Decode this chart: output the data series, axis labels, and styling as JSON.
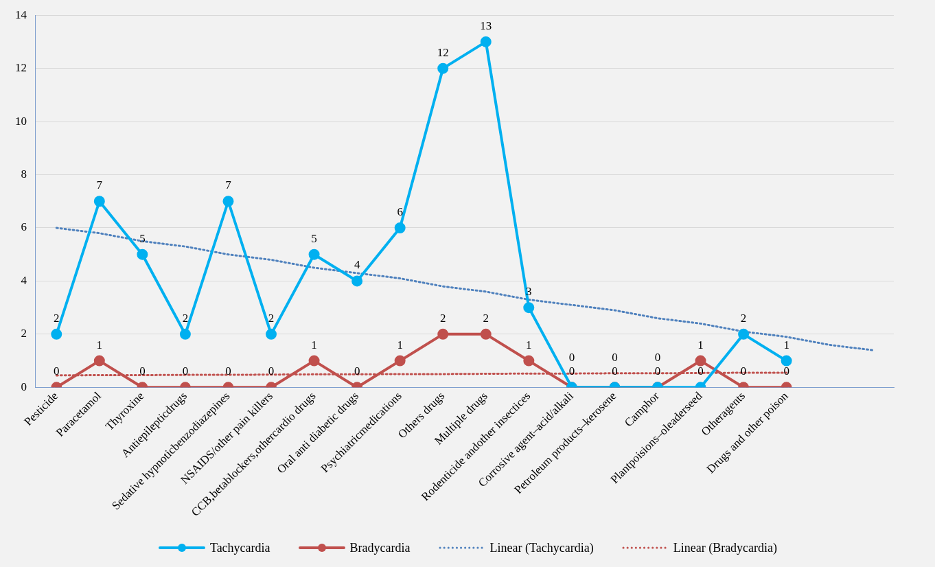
{
  "chart_data": {
    "type": "line",
    "categories": [
      "Pesticide",
      "Paracetamol",
      "Thyroxine",
      "Antiepilepticdrugs",
      "Sedative hypnoticbenzodiazepines",
      "NSAIDS/other pain killers",
      "CCB,betablockers,othercardio drugs",
      "Oral anti diabetic drugs",
      "Psychiatricmedications",
      "Others drugs",
      "Multiple drugs",
      "Rodenticide andother insectices",
      "Corrosive agent–acid/alkali",
      "Petroleum products–kerosene",
      "Camphor",
      "Plantpoisions–oleaderseed",
      "Otheragents",
      "Drugs and other poison",
      null,
      null
    ],
    "series": [
      {
        "name": "Tachycardia",
        "color": "#00b0f0",
        "marker": "circle",
        "line_style": "solid",
        "data_labels": true,
        "values": [
          2,
          7,
          5,
          2,
          7,
          2,
          5,
          4,
          6,
          12,
          13,
          3,
          0,
          0,
          0,
          0,
          2,
          1,
          null,
          null
        ]
      },
      {
        "name": "Bradycardia",
        "color": "#c0504d",
        "marker": "circle",
        "line_style": "solid",
        "data_labels": true,
        "values": [
          0,
          1,
          0,
          0,
          0,
          0,
          1,
          0,
          1,
          2,
          2,
          1,
          0,
          0,
          0,
          1,
          0,
          0,
          null,
          null
        ]
      },
      {
        "name": "Linear (Tachycardia)",
        "color": "#4f81bd",
        "marker": "none",
        "line_style": "dotted",
        "values": [
          6.0,
          5.8,
          5.5,
          5.3,
          5.0,
          4.8,
          4.5,
          4.3,
          4.1,
          3.8,
          3.6,
          3.3,
          3.1,
          2.9,
          2.6,
          2.4,
          2.1,
          1.9,
          1.6,
          1.4
        ]
      },
      {
        "name": "Linear (Bradycardia)",
        "color": "#c0504d",
        "marker": "none",
        "line_style": "dotted",
        "values": [
          0.45,
          0.46,
          0.46,
          0.47,
          0.47,
          0.48,
          0.49,
          0.49,
          0.5,
          0.5,
          0.51,
          0.52,
          0.52,
          0.53,
          0.53,
          0.54,
          0.55,
          0.55,
          null,
          null
        ]
      }
    ],
    "ylim": [
      0,
      14
    ],
    "yticks": [
      0,
      2,
      4,
      6,
      8,
      10,
      12,
      14
    ],
    "grid": "y",
    "legend": "bottom"
  }
}
